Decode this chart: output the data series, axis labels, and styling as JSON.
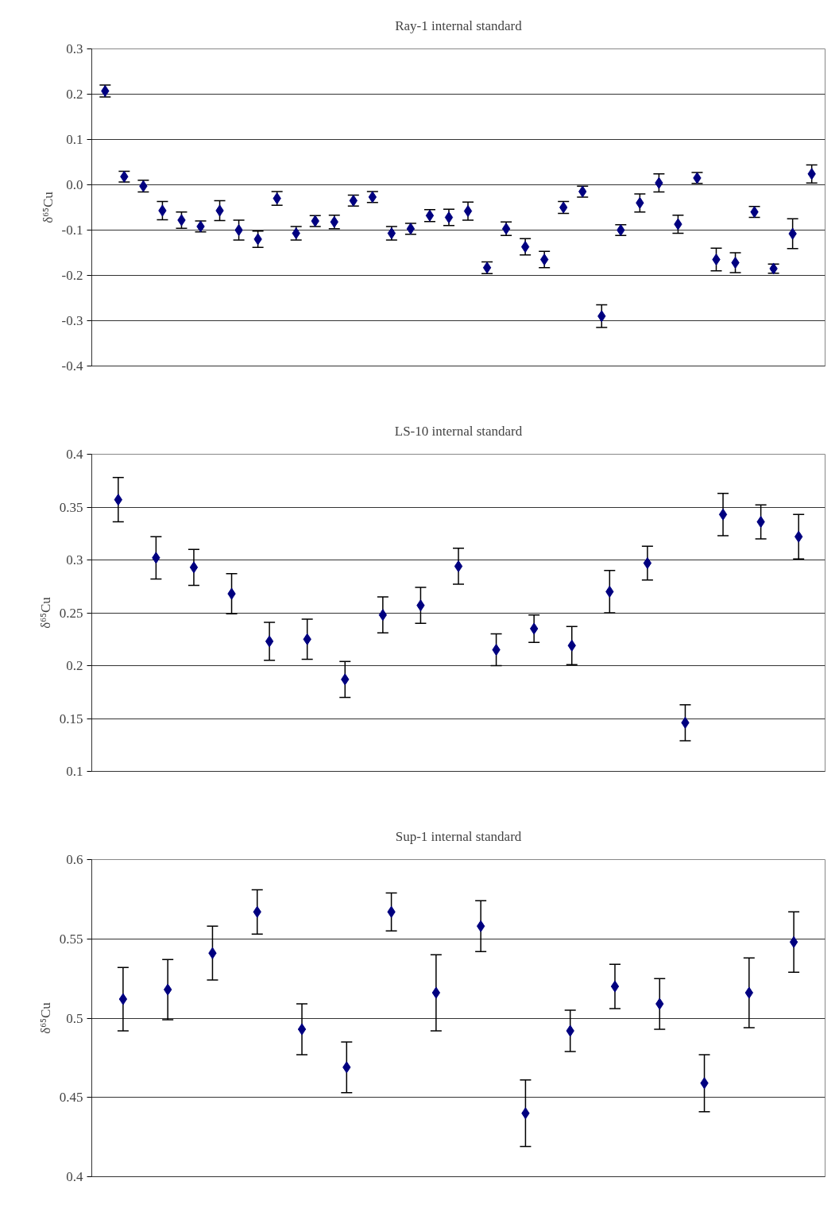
{
  "chart_data": [
    {
      "type": "scatter",
      "title": "Ray-1 internal standard",
      "ylabel": "δ⁶⁵Cu",
      "marker": "diamond",
      "grid": "y",
      "tick_labels": "y",
      "categories": [
        null,
        null,
        null,
        null,
        null,
        null,
        null,
        null,
        null,
        null,
        null,
        null,
        null,
        null,
        null,
        null,
        null,
        null,
        null,
        null,
        null,
        null,
        null,
        null,
        null,
        null,
        null,
        null,
        null,
        null,
        null,
        null,
        null,
        null,
        null,
        null,
        null,
        null
      ],
      "ylim": [
        -0.4,
        0.3
      ],
      "yticks": [
        -0.4,
        -0.3,
        -0.2,
        -0.1,
        {
          "value": 0,
          "label": "0.0"
        },
        0.1,
        0.2,
        0.3
      ],
      "series": [
        {
          "color": "#000080",
          "values": [
            0.207,
            0.018,
            -0.003,
            -0.057,
            -0.078,
            -0.092,
            -0.057,
            -0.1,
            -0.12,
            -0.03,
            -0.107,
            -0.08,
            -0.082,
            -0.035,
            -0.027,
            -0.107,
            -0.097,
            -0.068,
            -0.072,
            -0.058,
            -0.183,
            -0.097,
            -0.137,
            -0.165,
            -0.05,
            -0.015,
            -0.29,
            -0.1,
            -0.04,
            0.004,
            -0.087,
            0.015,
            -0.165,
            -0.172,
            -0.06,
            -0.185,
            -0.108,
            0.024
          ],
          "errors": [
            0.013,
            0.012,
            0.013,
            0.02,
            0.018,
            0.012,
            0.022,
            0.022,
            0.018,
            0.015,
            0.015,
            0.012,
            0.015,
            0.012,
            0.012,
            0.015,
            0.012,
            0.013,
            0.018,
            0.02,
            0.013,
            0.015,
            0.018,
            0.018,
            0.013,
            0.012,
            0.025,
            0.012,
            0.02,
            0.02,
            0.02,
            0.012,
            0.025,
            0.022,
            0.012,
            0.01,
            0.033,
            0.02
          ]
        }
      ]
    },
    {
      "type": "scatter",
      "title": "LS-10 internal standard",
      "ylabel": "δ⁶⁵Cu",
      "marker": "diamond",
      "grid": "y",
      "tick_labels": "y",
      "categories": [
        null,
        null,
        null,
        null,
        null,
        null,
        null,
        null,
        null,
        null,
        null,
        null,
        null,
        null,
        null,
        null,
        null,
        null,
        null
      ],
      "ylim": [
        0.1,
        0.4
      ],
      "yticks": [
        0.1,
        0.15,
        0.2,
        0.25,
        0.3,
        0.35,
        0.4
      ],
      "series": [
        {
          "color": "#000080",
          "values": [
            0.357,
            0.302,
            0.293,
            0.268,
            0.223,
            0.225,
            0.187,
            0.248,
            0.257,
            0.294,
            0.215,
            0.235,
            0.219,
            0.27,
            0.297,
            0.146,
            0.343,
            0.336,
            0.322
          ],
          "errors": [
            0.021,
            0.02,
            0.017,
            0.019,
            0.018,
            0.019,
            0.017,
            0.017,
            0.017,
            0.017,
            0.015,
            0.013,
            0.018,
            0.02,
            0.016,
            0.017,
            0.02,
            0.016,
            0.021
          ]
        }
      ]
    },
    {
      "type": "scatter",
      "title": "Sup-1 internal standard",
      "ylabel": "δ⁶⁵Cu",
      "marker": "diamond",
      "grid": "y",
      "tick_labels": "y",
      "categories": [
        null,
        null,
        null,
        null,
        null,
        null,
        null,
        null,
        null,
        null,
        null,
        null,
        null,
        null,
        null,
        null
      ],
      "ylim": [
        0.4,
        0.6
      ],
      "yticks": [
        0.4,
        0.45,
        0.5,
        0.55,
        0.6
      ],
      "series": [
        {
          "color": "#000080",
          "values": [
            0.512,
            0.518,
            0.541,
            0.567,
            0.493,
            0.469,
            0.567,
            0.516,
            0.558,
            0.44,
            0.492,
            0.52,
            0.509,
            0.459,
            0.516,
            0.548
          ],
          "errors": [
            0.02,
            0.019,
            0.017,
            0.014,
            0.016,
            0.016,
            0.012,
            0.024,
            0.016,
            0.021,
            0.013,
            0.014,
            0.016,
            0.018,
            0.022,
            0.019
          ]
        }
      ]
    }
  ]
}
